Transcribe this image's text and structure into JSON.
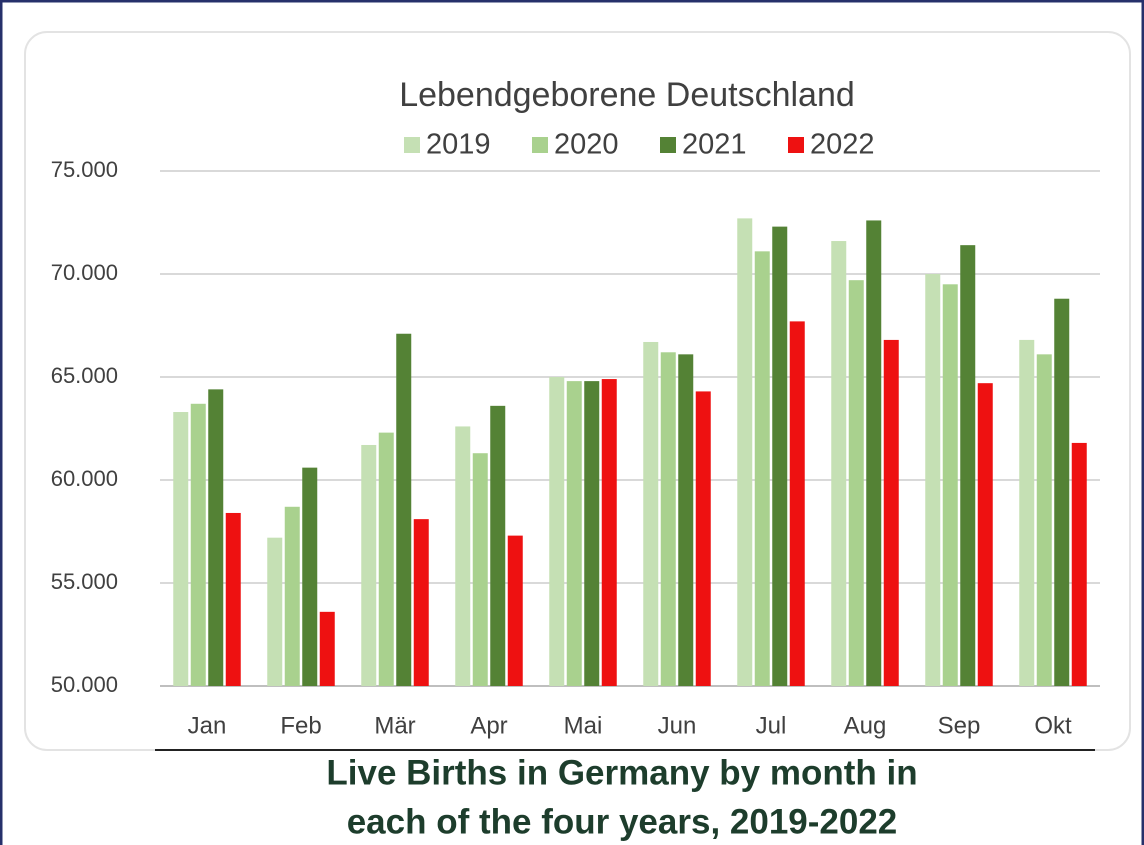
{
  "chart_data": {
    "type": "bar",
    "title": "Lebendgeborene Deutschland",
    "caption": [
      "Live Births in Germany by month in",
      "each of the four years, 2019-2022"
    ],
    "categories": [
      "Jan",
      "Feb",
      "Mär",
      "Apr",
      "Mai",
      "Jun",
      "Jul",
      "Aug",
      "Sep",
      "Okt"
    ],
    "series": [
      {
        "name": "2019",
        "color": "#c5e0b4",
        "values": [
          63300,
          57200,
          61700,
          62600,
          65000,
          66700,
          72700,
          71600,
          70000,
          66800
        ]
      },
      {
        "name": "2020",
        "color": "#a9d18e",
        "values": [
          63700,
          58700,
          62300,
          61300,
          64800,
          66200,
          71100,
          69700,
          69500,
          66100
        ]
      },
      {
        "name": "2021",
        "color": "#548235",
        "values": [
          64400,
          60600,
          67100,
          63600,
          64800,
          66100,
          72300,
          72600,
          71400,
          68800
        ]
      },
      {
        "name": "2022",
        "color": "#ee1111",
        "values": [
          58400,
          53600,
          58100,
          57300,
          64900,
          64300,
          67700,
          66800,
          64700,
          61800
        ]
      }
    ],
    "ylim": [
      50000,
      75000
    ],
    "yticks": [
      {
        "value": 50000,
        "label": "50.000"
      },
      {
        "value": 55000,
        "label": "55.000"
      },
      {
        "value": 60000,
        "label": "60.000"
      },
      {
        "value": 65000,
        "label": "65.000"
      },
      {
        "value": 70000,
        "label": "70.000"
      },
      {
        "value": 75000,
        "label": "75.000"
      }
    ],
    "grid": true,
    "legend": "top"
  }
}
